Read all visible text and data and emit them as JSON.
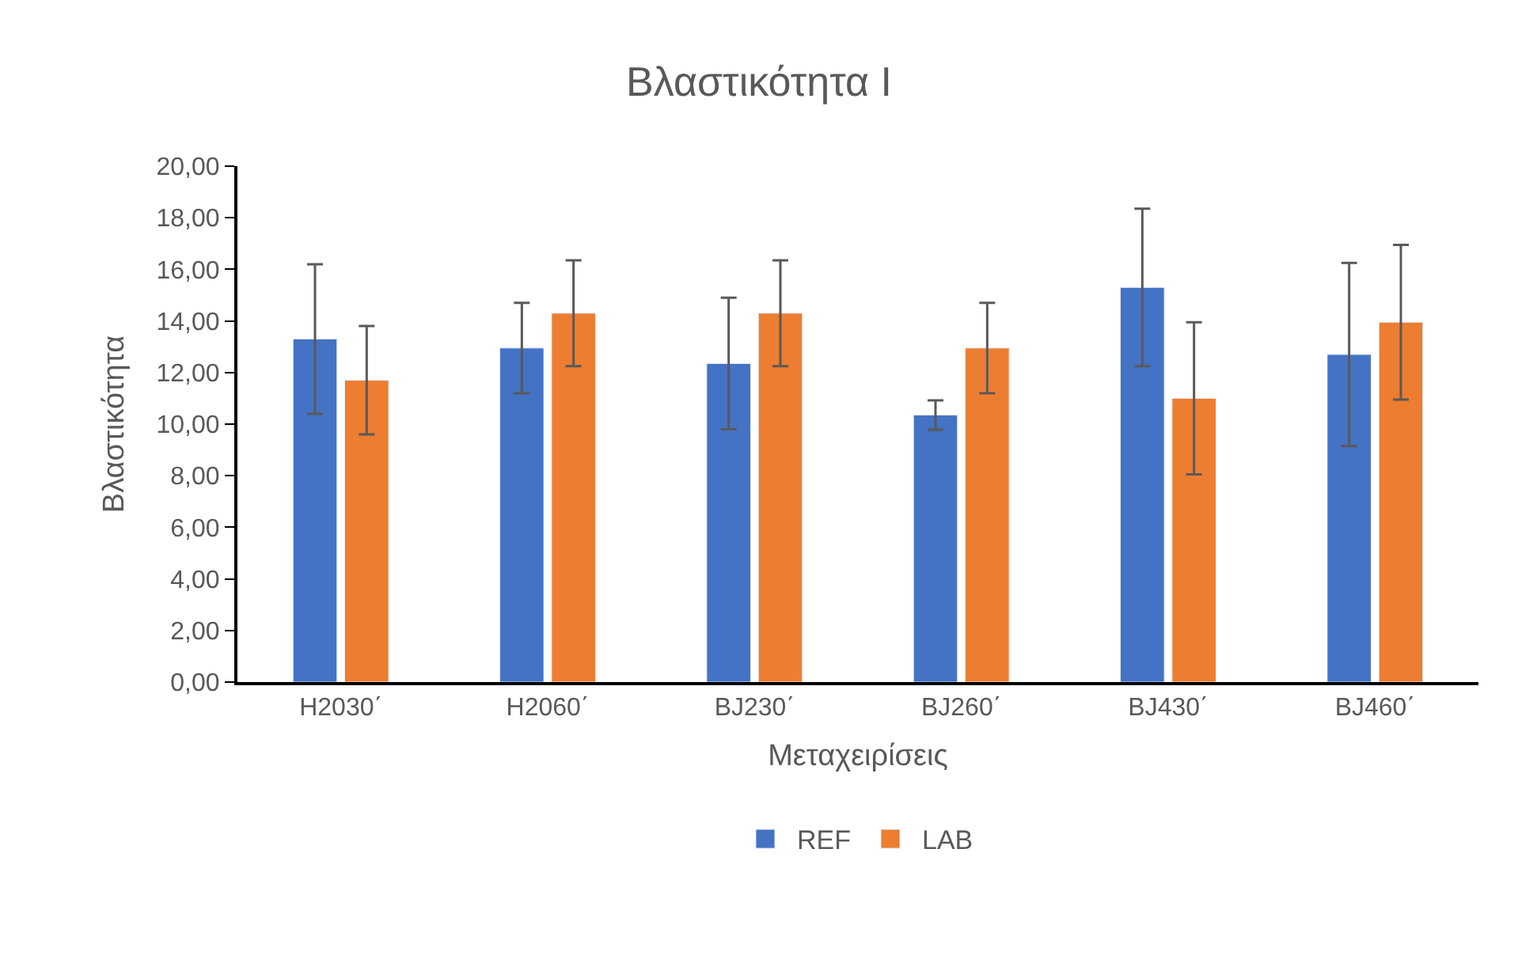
{
  "chart_data": {
    "type": "bar",
    "title": "Βλαστικότητα Ι",
    "xlabel": "Μεταχειρίσεις",
    "ylabel": "Βλαστικότητα",
    "categories": [
      "H2030΄",
      "H2060΄",
      "BJ230΄",
      "BJ260΄",
      "BJ430΄",
      "BJ460΄"
    ],
    "series": [
      {
        "name": "REF",
        "color": "#4472c4",
        "values": [
          13.3,
          12.95,
          12.35,
          10.35,
          15.3,
          12.7
        ],
        "errors": [
          2.9,
          1.75,
          2.55,
          0.57,
          3.05,
          3.55
        ]
      },
      {
        "name": "LAB",
        "color": "#ed7d31",
        "values": [
          11.7,
          14.3,
          14.3,
          12.95,
          11.0,
          13.95
        ],
        "errors": [
          2.1,
          2.05,
          2.05,
          1.75,
          2.95,
          3.0
        ]
      }
    ],
    "ylim": [
      0,
      20
    ],
    "yticks": [
      {
        "value": 0,
        "label": "0,00"
      },
      {
        "value": 2,
        "label": "2,00"
      },
      {
        "value": 4,
        "label": "4,00"
      },
      {
        "value": 6,
        "label": "6,00"
      },
      {
        "value": 8,
        "label": "8,00"
      },
      {
        "value": 10,
        "label": "10,00"
      },
      {
        "value": 12,
        "label": "12,00"
      },
      {
        "value": 14,
        "label": "14,00"
      },
      {
        "value": 16,
        "label": "16,00"
      },
      {
        "value": 18,
        "label": "18,00"
      },
      {
        "value": 20,
        "label": "20,00"
      }
    ],
    "legend": "bottom"
  }
}
